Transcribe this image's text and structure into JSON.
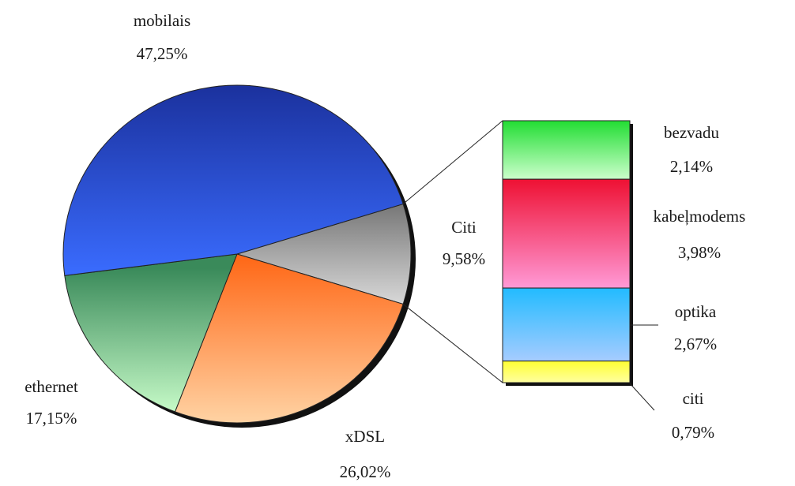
{
  "chart_data": [
    {
      "type": "pie",
      "categories": [
        "Citi",
        "xDSL",
        "ethernet",
        "mobilais"
      ],
      "values": [
        9.58,
        26.02,
        17.15,
        47.25
      ],
      "value_labels": [
        "9,58%",
        "26,02%",
        "17,15%",
        "47,25%"
      ],
      "colors": [
        [
          "#707070",
          "#dcdcdc"
        ],
        [
          "#ff6a1a",
          "#ffd0a0"
        ],
        [
          "#3a8a5a",
          "#ccffcc"
        ],
        [
          "#1a2f9a",
          "#3a6cff"
        ]
      ]
    },
    {
      "type": "stacked-bar",
      "categories": [
        "bezvadu",
        "kabeļmodems",
        "optika",
        "citi"
      ],
      "values": [
        2.14,
        3.98,
        2.67,
        0.79
      ],
      "value_labels": [
        "2,14%",
        "3,98%",
        "2,67%",
        "0,79%"
      ],
      "colors": [
        [
          "#22dd33",
          "#ccffcc"
        ],
        [
          "#ee1133",
          "#ff99d6"
        ],
        [
          "#22bbff",
          "#a6ccff"
        ],
        [
          "#ffff33",
          "#ffffa0"
        ]
      ]
    }
  ]
}
